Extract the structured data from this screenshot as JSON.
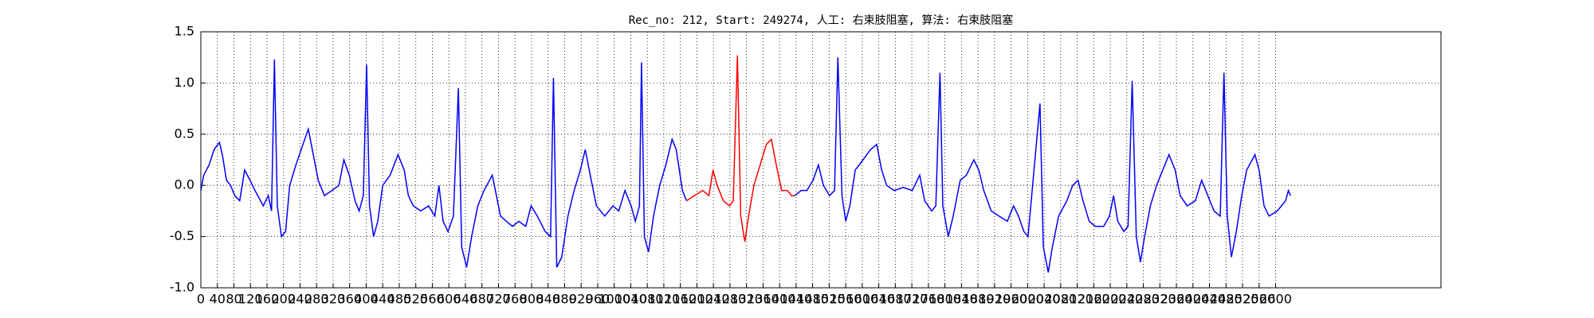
{
  "chart_data": {
    "type": "line",
    "title": "Rec_no: 212, Start: 249274, 人工: 右束肢阻塞, 算法: 右束肢阻塞",
    "xlim": [
      0,
      3000
    ],
    "xticks": [
      0,
      40,
      80,
      120,
      160,
      200,
      240,
      280,
      320,
      360,
      400,
      440,
      480,
      520,
      560,
      600,
      640,
      680,
      720,
      760,
      800,
      840,
      880,
      920,
      960,
      1000,
      1040,
      1080,
      1120,
      1160,
      1200,
      1240,
      1280,
      1320,
      1360,
      1400,
      1440,
      1480,
      1520,
      1560,
      1600,
      1640,
      1680,
      1720,
      1760,
      1800,
      1840,
      1880,
      1920,
      1960,
      2000,
      2040,
      2080,
      2120,
      2160,
      2200,
      2240,
      2280,
      2320,
      2360,
      2400,
      2440,
      2480,
      2520,
      2560,
      2600
    ],
    "ylim": [
      -1,
      1.5
    ],
    "yticks": [
      {
        "value": -1,
        "label": "-1.0"
      },
      -0.5,
      {
        "value": 0,
        "label": "0.0"
      },
      0.5,
      {
        "value": 1,
        "label": "1.0"
      },
      1.5
    ],
    "grid": true,
    "series": [
      {
        "color": "#0000ff",
        "x": [
          0,
          7,
          20,
          32,
          45,
          52,
          62,
          72,
          82,
          94,
          106,
          119,
          131,
          151,
          163,
          171,
          178,
          185,
          195,
          205,
          215,
          230,
          247,
          260,
          272,
          284,
          299,
          317,
          334,
          346,
          359,
          373,
          383,
          393,
          401,
          408,
          418,
          428,
          440,
          458,
          477,
          492,
          502,
          514,
          532,
          551,
          566,
          576,
          586,
          598,
          611,
          623,
          631,
          643,
          655,
          670,
          685,
          705,
          715,
          725,
          739,
          754,
          769,
          786,
          799,
          814,
          833,
          846,
          853,
          861,
          873,
          888,
          903,
          918,
          930,
          942,
          957,
          977,
          997,
          1011,
          1026,
          1041,
          1051,
          1061,
          1066,
          1073,
          1083,
          1095,
          1110,
          1125,
          1140,
          1150,
          1165,
          1175
        ],
        "values": [
          -0.05,
          0.1,
          0.2,
          0.35,
          0.42,
          0.3,
          0.05,
          0,
          -0.1,
          -0.15,
          0.15,
          0.05,
          -0.05,
          -0.2,
          -0.1,
          -0.25,
          1.23,
          -0.2,
          -0.5,
          -0.45,
          0,
          0.2,
          0.4,
          0.55,
          0.3,
          0.05,
          -0.1,
          -0.05,
          0,
          0.25,
          0.1,
          -0.15,
          -0.25,
          -0.1,
          1.18,
          -0.2,
          -0.5,
          -0.35,
          0,
          0.1,
          0.3,
          0.15,
          -0.1,
          -0.2,
          -0.25,
          -0.2,
          -0.3,
          0,
          -0.35,
          -0.45,
          -0.3,
          0.95,
          -0.6,
          -0.8,
          -0.5,
          -0.2,
          -0.05,
          0.1,
          -0.1,
          -0.3,
          -0.35,
          -0.4,
          -0.35,
          -0.4,
          -0.2,
          -0.3,
          -0.45,
          -0.5,
          1.05,
          -0.8,
          -0.7,
          -0.3,
          -0.05,
          0.15,
          0.35,
          0.1,
          -0.2,
          -0.3,
          -0.2,
          -0.25,
          -0.05,
          -0.2,
          -0.35,
          -0.2,
          1.2,
          -0.5,
          -0.65,
          -0.3,
          0,
          0.2,
          0.45,
          0.35,
          -0.05,
          -0.15
        ]
      },
      {
        "color": "#ff0000",
        "x": [
          1175,
          1194,
          1214,
          1229,
          1239,
          1249,
          1264,
          1279,
          1288,
          1298,
          1306,
          1316,
          1325,
          1338,
          1353,
          1368,
          1380,
          1392,
          1405,
          1419,
          1429,
          1437
        ],
        "values": [
          -0.15,
          -0.1,
          -0.05,
          -0.1,
          0.15,
          0,
          -0.15,
          -0.2,
          -0.15,
          1.27,
          -0.3,
          -0.55,
          -0.3,
          0,
          0.2,
          0.4,
          0.45,
          0.2,
          -0.05,
          -0.05,
          -0.1,
          -0.1
        ]
      },
      {
        "color": "#0000ff",
        "x": [
          1437,
          1452,
          1466,
          1481,
          1494,
          1506,
          1521,
          1533,
          1541,
          1551,
          1560,
          1570,
          1583,
          1602,
          1620,
          1635,
          1647,
          1659,
          1677,
          1699,
          1721,
          1739,
          1751,
          1768,
          1778,
          1788,
          1795,
          1808,
          1820,
          1837,
          1852,
          1870,
          1882,
          1894,
          1912,
          1931,
          1951,
          1966,
          1978,
          1991,
          2001,
          2030,
          2038,
          2050,
          2060,
          2075,
          2095,
          2109,
          2122,
          2134,
          2149,
          2164,
          2184,
          2198,
          2208,
          2218,
          2233,
          2243,
          2253,
          2263,
          2273,
          2283,
          2297,
          2312,
          2327,
          2342,
          2357,
          2369,
          2386,
          2406,
          2421,
          2436,
          2451,
          2466,
          2475,
          2483,
          2493,
          2505,
          2518,
          2530,
          2550,
          2560,
          2572,
          2584,
          2604,
          2624,
          2631,
          2636
        ],
        "values": [
          -0.1,
          -0.05,
          -0.05,
          0.05,
          0.2,
          0,
          -0.1,
          -0.05,
          1.25,
          -0.1,
          -0.35,
          -0.2,
          0.15,
          0.25,
          0.35,
          0.4,
          0.15,
          0,
          -0.05,
          -0.02,
          -0.05,
          0.1,
          -0.15,
          -0.25,
          -0.2,
          1.1,
          -0.2,
          -0.5,
          -0.3,
          0.05,
          0.1,
          0.25,
          0.15,
          -0.05,
          -0.25,
          -0.3,
          -0.35,
          -0.2,
          -0.3,
          -0.45,
          -0.5,
          0.8,
          -0.6,
          -0.85,
          -0.6,
          -0.3,
          -0.15,
          0,
          0.05,
          -0.15,
          -0.35,
          -0.4,
          -0.4,
          -0.3,
          -0.1,
          -0.35,
          -0.45,
          -0.4,
          1.02,
          -0.5,
          -0.75,
          -0.5,
          -0.2,
          0,
          0.15,
          0.3,
          0.15,
          -0.1,
          -0.2,
          -0.15,
          0.05,
          -0.1,
          -0.25,
          -0.3,
          1.1,
          -0.3,
          -0.7,
          -0.45,
          -0.1,
          0.15,
          0.3,
          0.15,
          -0.2,
          -0.3,
          -0.25,
          -0.15,
          -0.05,
          -0.1
        ]
      }
    ]
  }
}
